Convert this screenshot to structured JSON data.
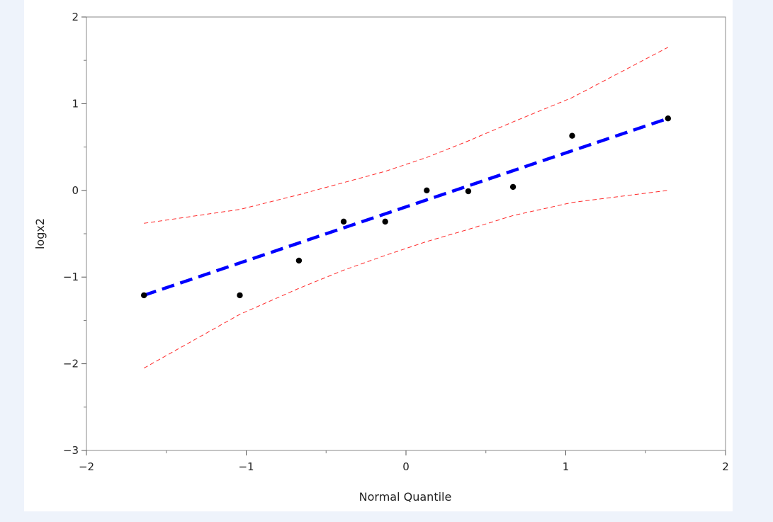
{
  "chart_data": {
    "type": "scatter",
    "xlabel": "Normal Quantile",
    "ylabel": "logx2",
    "xlim": [
      -2,
      2
    ],
    "ylim": [
      -3,
      2
    ],
    "x_ticks": [
      "−2",
      "−1",
      "0",
      "1",
      "2"
    ],
    "y_ticks": [
      "−3",
      "−2",
      "−1",
      "0",
      "1",
      "2"
    ],
    "x_tick_values": [
      -2,
      -1,
      0,
      1,
      2
    ],
    "y_tick_values": [
      -3,
      -2,
      -1,
      0,
      1,
      2
    ],
    "x_minor_values": [
      -1.5,
      -0.5,
      0.5,
      1.5
    ],
    "y_minor_values": [
      -2.5,
      -1.5,
      -0.5,
      0.5,
      1.5
    ],
    "grid": false,
    "points": [
      {
        "x": -1.64,
        "y": -1.21
      },
      {
        "x": -1.04,
        "y": -1.21
      },
      {
        "x": -0.67,
        "y": -0.81
      },
      {
        "x": -0.39,
        "y": -0.36
      },
      {
        "x": -0.13,
        "y": -0.36
      },
      {
        "x": 0.13,
        "y": 0.0
      },
      {
        "x": 0.39,
        "y": -0.01
      },
      {
        "x": 0.67,
        "y": 0.04
      },
      {
        "x": 1.04,
        "y": 0.63
      },
      {
        "x": 1.64,
        "y": 0.83
      }
    ],
    "fit_line": [
      {
        "x": -1.64,
        "y": -1.21
      },
      {
        "x": 1.64,
        "y": 0.83
      }
    ],
    "upper_band": [
      {
        "x": -1.64,
        "y": -0.38
      },
      {
        "x": -1.04,
        "y": -0.22
      },
      {
        "x": -0.67,
        "y": -0.05
      },
      {
        "x": -0.39,
        "y": 0.09
      },
      {
        "x": -0.13,
        "y": 0.22
      },
      {
        "x": 0.13,
        "y": 0.38
      },
      {
        "x": 0.39,
        "y": 0.57
      },
      {
        "x": 0.67,
        "y": 0.79
      },
      {
        "x": 1.04,
        "y": 1.07
      },
      {
        "x": 1.64,
        "y": 1.65
      }
    ],
    "lower_band": [
      {
        "x": -1.64,
        "y": -2.05
      },
      {
        "x": -1.04,
        "y": -1.43
      },
      {
        "x": -0.67,
        "y": -1.13
      },
      {
        "x": -0.39,
        "y": -0.92
      },
      {
        "x": -0.13,
        "y": -0.75
      },
      {
        "x": 0.13,
        "y": -0.59
      },
      {
        "x": 0.39,
        "y": -0.45
      },
      {
        "x": 0.67,
        "y": -0.29
      },
      {
        "x": 1.04,
        "y": -0.14
      },
      {
        "x": 1.64,
        "y": 0.0
      }
    ],
    "colors": {
      "points": "#000000",
      "fit_line": "#0000ff",
      "bands": "#ff2a2a",
      "frame": "#888888"
    }
  }
}
